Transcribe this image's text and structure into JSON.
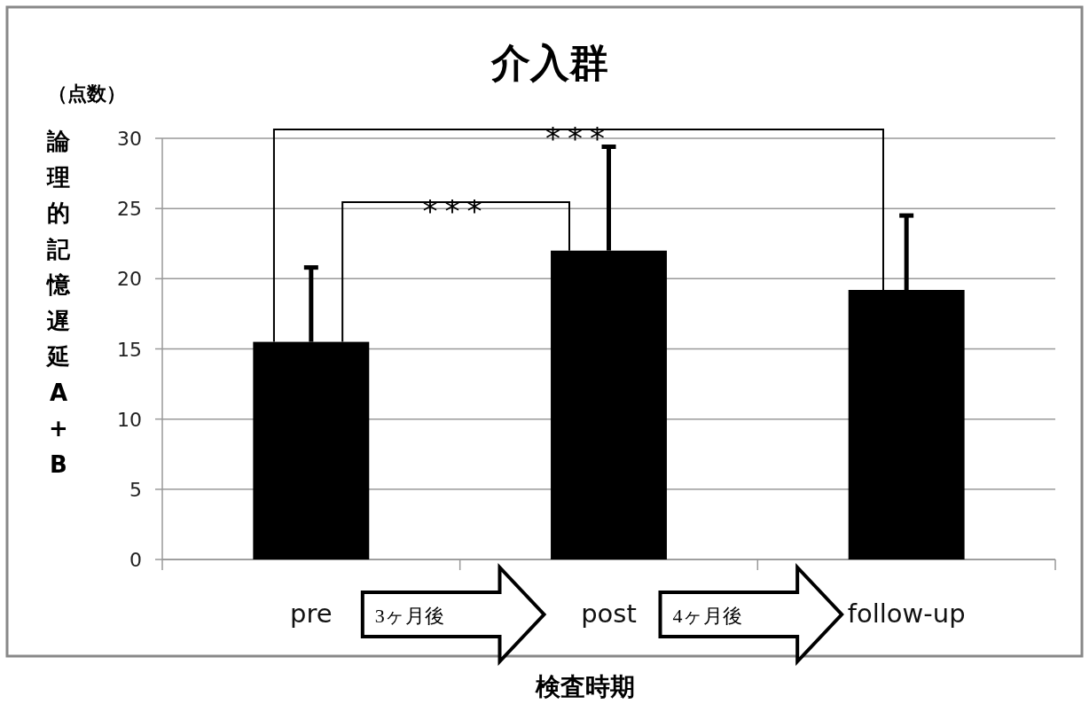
{
  "chart_data": {
    "type": "bar",
    "title": "介入群",
    "xlabel": "検査時期",
    "ylabel": "論理的記憶遅延A+B",
    "categories": [
      "pre",
      "post",
      "follow-up"
    ],
    "series": [
      {
        "color": "#000000",
        "values": [
          15.5,
          22.0,
          19.2
        ],
        "errors": [
          [
            15.5,
            20.8
          ],
          [
            22.0,
            29.4
          ],
          [
            19.2,
            24.5
          ]
        ]
      }
    ],
    "ylim": [
      0,
      30
    ],
    "yticks": [
      0,
      5,
      10,
      15,
      20,
      25,
      30
    ],
    "grid": "y",
    "annotations": [
      "（点数）",
      "***",
      "***",
      "3ヶ月後",
      "4ヶ月後"
    ]
  }
}
